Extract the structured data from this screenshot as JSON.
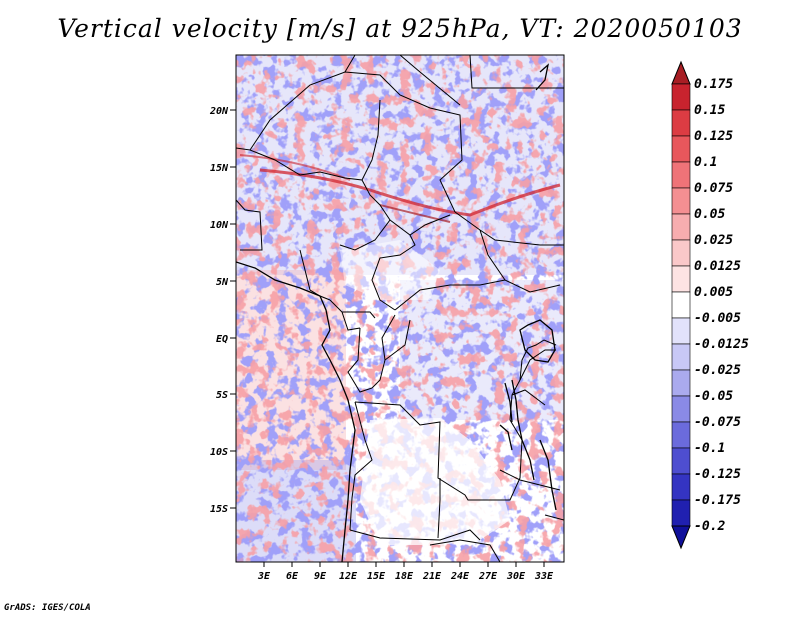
{
  "title": "Vertical velocity [m/s] at 925hPa, VT: 2020050103",
  "credit": "GrADS: IGES/COLA",
  "axes": {
    "lat_labels": [
      "20N",
      "15N",
      "10N",
      "5N",
      "EQ",
      "5S",
      "10S",
      "15S"
    ],
    "lon_labels": [
      "3E",
      "6E",
      "9E",
      "12E",
      "15E",
      "18E",
      "21E",
      "24E",
      "27E",
      "30E",
      "33E"
    ]
  },
  "colorbar": {
    "labels": [
      "0.175",
      "0.15",
      "0.125",
      "0.1",
      "0.075",
      "0.05",
      "0.025",
      "0.0125",
      "0.005",
      "-0.005",
      "-0.0125",
      "-0.025",
      "-0.05",
      "-0.075",
      "-0.1",
      "-0.125",
      "-0.175",
      "-0.2"
    ],
    "colors": [
      "#a81e24",
      "#c8232e",
      "#dc3c43",
      "#e8575c",
      "#ef7378",
      "#f48f92",
      "#f7adaf",
      "#fac8c9",
      "#fde3e3",
      "#ffffff",
      "#e2e2fb",
      "#c8c8f6",
      "#aaaaee",
      "#8a8ae6",
      "#6b6bdc",
      "#4e4ed0",
      "#3434c2",
      "#2020b0",
      "#10109a"
    ]
  }
}
